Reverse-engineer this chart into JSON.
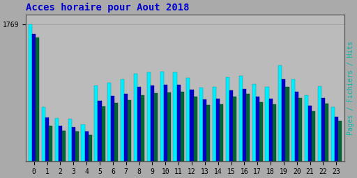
{
  "title": "Acces horaire pour Aout 2018",
  "ylabel_right": "Pages / Fichiers / Hits",
  "hours": [
    0,
    1,
    2,
    3,
    4,
    5,
    6,
    7,
    8,
    9,
    10,
    11,
    12,
    13,
    14,
    15,
    16,
    17,
    18,
    19,
    20,
    21,
    22,
    23
  ],
  "hits": [
    1769,
    700,
    560,
    550,
    480,
    980,
    1020,
    1060,
    1130,
    1150,
    1160,
    1150,
    1080,
    950,
    960,
    1090,
    1110,
    1000,
    960,
    1240,
    1060,
    860,
    970,
    700
  ],
  "fichiers": [
    1650,
    570,
    460,
    440,
    385,
    780,
    850,
    870,
    960,
    980,
    990,
    990,
    930,
    800,
    815,
    920,
    940,
    840,
    810,
    1060,
    900,
    720,
    820,
    580
  ],
  "pages": [
    1600,
    460,
    400,
    390,
    340,
    710,
    760,
    790,
    860,
    885,
    890,
    900,
    840,
    730,
    735,
    840,
    870,
    770,
    740,
    960,
    820,
    650,
    750,
    520
  ],
  "color_hits": "#00eeff",
  "color_fichiers": "#0000cc",
  "color_pages": "#006633",
  "bg_color": "#aaaaaa",
  "plot_bg_color": "#bbbbbb",
  "title_color": "#0000cc",
  "ylabel_color": "#00bbaa",
  "bar_width": 0.27,
  "ylim_max": 1900
}
